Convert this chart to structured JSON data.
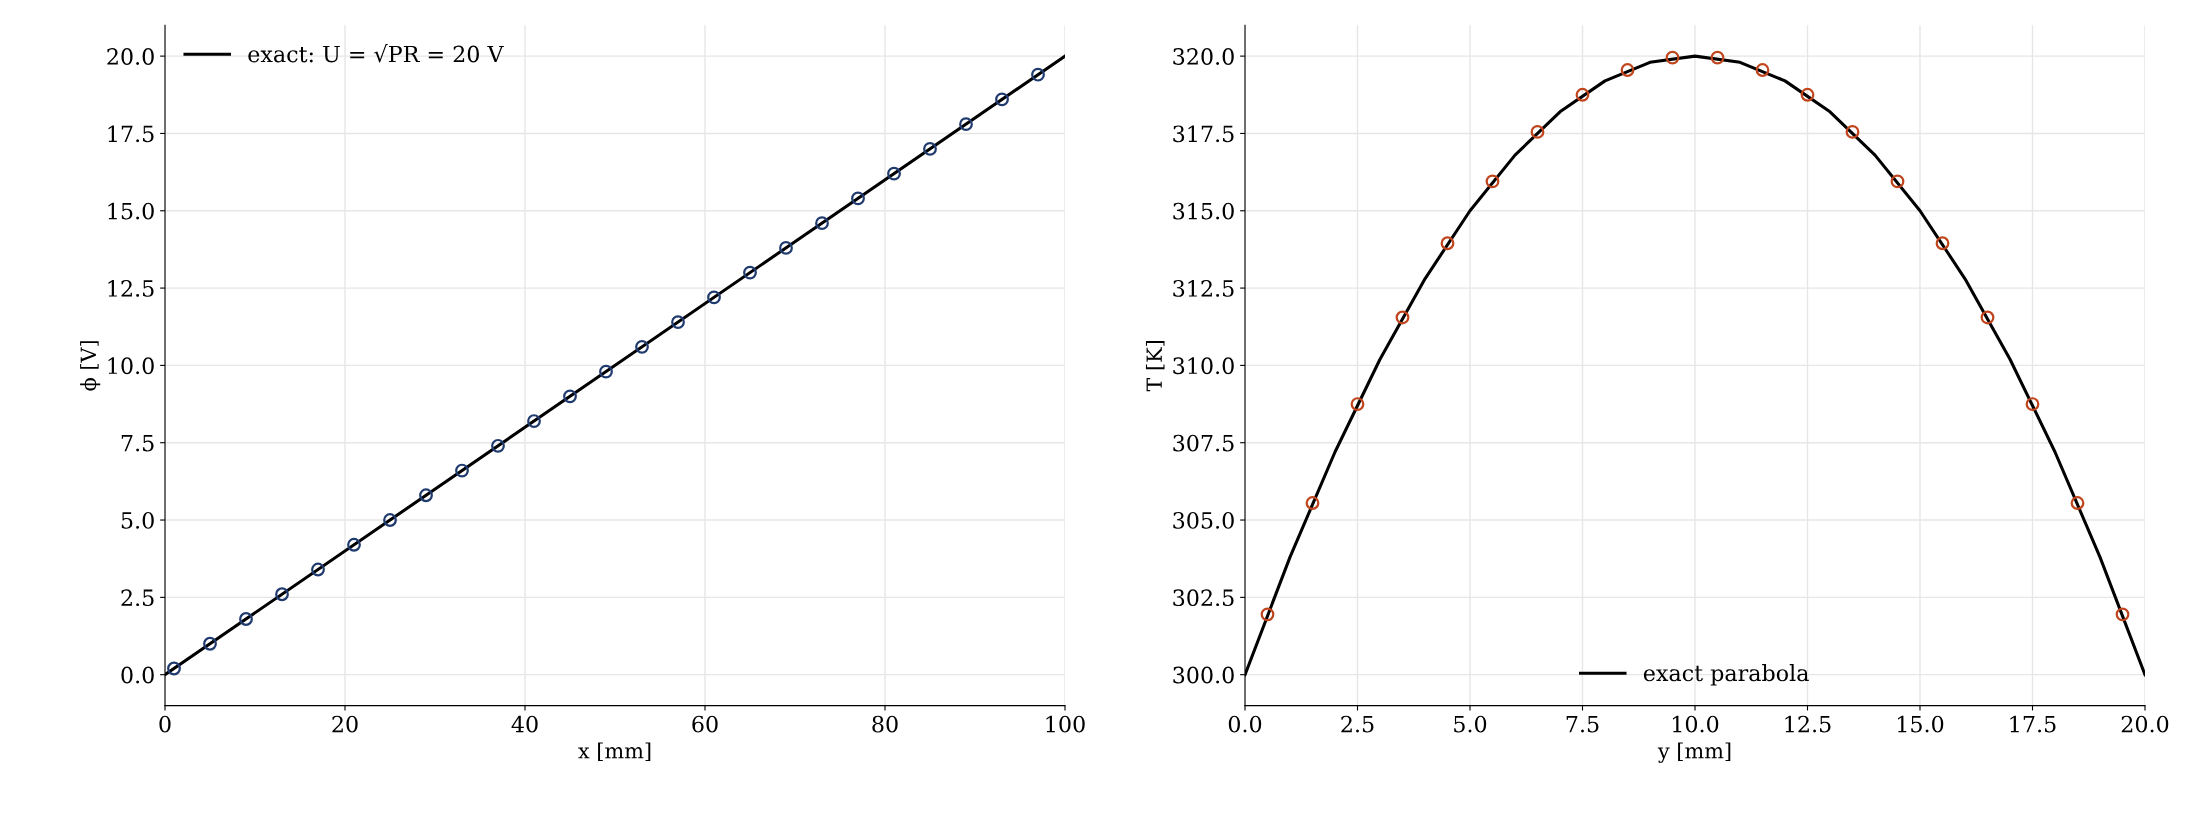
{
  "chart_data": [
    {
      "type": "line",
      "xlabel": "x [mm]",
      "ylabel": "ϕ [V]",
      "xlim": [
        0,
        100
      ],
      "xticks": [
        0,
        20,
        40,
        60,
        80,
        100
      ],
      "ylim": [
        -1,
        21
      ],
      "yticks": [
        {
          "value": 0,
          "label": "0.0"
        },
        2.5,
        {
          "value": 5,
          "label": "5.0"
        },
        7.5,
        {
          "value": 10,
          "label": "10.0"
        },
        12.5,
        {
          "value": 15,
          "label": "15.0"
        },
        17.5,
        {
          "value": 20,
          "label": "20.0"
        }
      ],
      "grid": true,
      "legend": "top left",
      "series": [
        {
          "name": "exact: U = √PR = 20 V",
          "color": "#000000",
          "marker": "none",
          "line_style": "solid",
          "x": [
            0,
            100
          ],
          "values": [
            0,
            20
          ]
        },
        {
          "type": "scatter",
          "color": "#1f3a6e",
          "marker": "circle",
          "x": [
            1,
            5,
            9,
            13,
            17,
            21,
            25,
            29,
            33,
            37,
            41,
            45,
            49,
            53,
            57,
            61,
            65,
            69,
            73,
            77,
            81,
            85,
            89,
            93,
            97
          ],
          "values": [
            0.2,
            1.0,
            1.8,
            2.6,
            3.4,
            4.2,
            5.0,
            5.8,
            6.6,
            7.4,
            8.2,
            9.0,
            9.8,
            10.6,
            11.4,
            12.2,
            13.0,
            13.8,
            14.6,
            15.4,
            16.2,
            17.0,
            17.8,
            18.6,
            19.4
          ]
        }
      ]
    },
    {
      "type": "line",
      "xlabel": "y [mm]",
      "ylabel": "T [K]",
      "xlim": [
        0,
        20
      ],
      "xticks": [
        {
          "value": 0,
          "label": "0.0"
        },
        2.5,
        {
          "value": 5,
          "label": "5.0"
        },
        7.5,
        {
          "value": 10,
          "label": "10.0"
        },
        12.5,
        {
          "value": 15,
          "label": "15.0"
        },
        17.5,
        {
          "value": 20,
          "label": "20.0"
        }
      ],
      "ylim": [
        299,
        321
      ],
      "yticks": [
        {
          "value": 300,
          "label": "300.0"
        },
        302.5,
        {
          "value": 305,
          "label": "305.0"
        },
        307.5,
        {
          "value": 310,
          "label": "310.0"
        },
        312.5,
        {
          "value": 315,
          "label": "315.0"
        },
        317.5,
        {
          "value": 320,
          "label": "320.0"
        }
      ],
      "grid": true,
      "legend": "bottom",
      "series": [
        {
          "name": "exact parabola",
          "color": "#000000",
          "marker": "none",
          "line_style": "solid",
          "x": [
            0,
            1,
            2,
            3,
            4,
            5,
            6,
            7,
            8,
            9,
            10,
            11,
            12,
            13,
            14,
            15,
            16,
            17,
            18,
            19,
            20
          ],
          "values": [
            300,
            303.8,
            307.2,
            310.2,
            312.8,
            315,
            316.8,
            318.2,
            319.2,
            319.8,
            320,
            319.8,
            319.2,
            318.2,
            316.8,
            315,
            312.8,
            310.2,
            307.2,
            303.8,
            300
          ]
        },
        {
          "type": "scatter",
          "color": "#c0441c",
          "marker": "circle",
          "x": [
            0.5,
            1.5,
            2.5,
            3.5,
            4.5,
            5.5,
            6.5,
            7.5,
            8.5,
            9.5,
            10.5,
            11.5,
            12.5,
            13.5,
            14.5,
            15.5,
            16.5,
            17.5,
            18.5,
            19.5
          ],
          "values": [
            301.95,
            305.55,
            308.75,
            311.55,
            313.95,
            315.95,
            317.55,
            318.75,
            319.55,
            319.95,
            319.95,
            319.55,
            318.75,
            317.55,
            315.95,
            313.95,
            311.55,
            308.75,
            305.55,
            301.95
          ]
        }
      ]
    }
  ]
}
